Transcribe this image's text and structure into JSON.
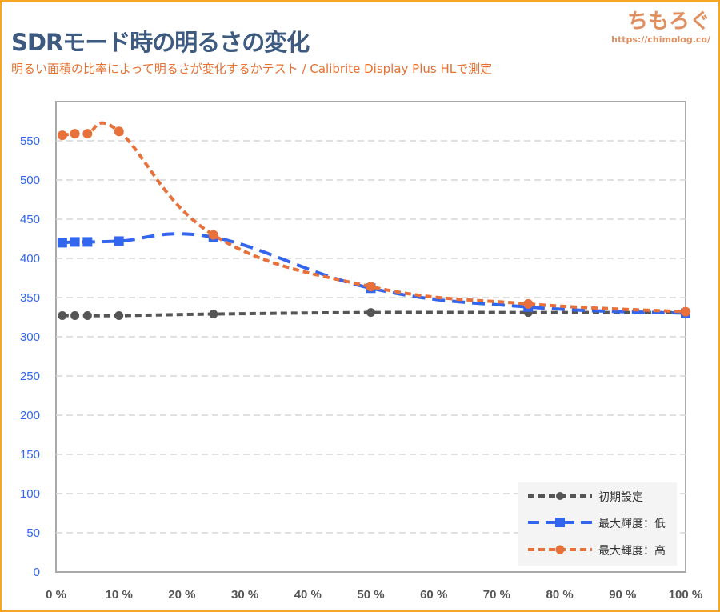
{
  "header": {
    "title": "SDRモード時の明るさの変化",
    "subtitle": "明るい面積の比率によって明るさが変化するかテスト / Calibrite Display Plus HLで測定"
  },
  "logo": {
    "name": "ちもろぐ",
    "url": "https://chimolog.co/"
  },
  "colors": {
    "default": "#555555",
    "low": "#3366ee",
    "high": "#e8703a"
  },
  "chart_data": {
    "type": "line",
    "title": "SDRモード時の明るさの変化",
    "xlabel": "",
    "ylabel": "",
    "x": [
      1,
      3,
      5,
      10,
      25,
      50,
      75,
      100
    ],
    "xlim": [
      0,
      100
    ],
    "ylim": [
      0,
      600
    ],
    "xticks": [
      "0 %",
      "10 %",
      "20 %",
      "30 %",
      "40 %",
      "50 %",
      "60 %",
      "70 %",
      "80 %",
      "90 %",
      "100 %"
    ],
    "yticks": [
      "0",
      "50",
      "100",
      "150",
      "200",
      "250",
      "300",
      "350",
      "400",
      "450",
      "500",
      "550"
    ],
    "grid": true,
    "legend_position": "bottom-right",
    "series": [
      {
        "name": "初期設定",
        "values": [
          327,
          327,
          327,
          327,
          329,
          331,
          331,
          331
        ]
      },
      {
        "name": "最大輝度：低",
        "values": [
          420,
          421,
          421,
          422,
          427,
          362,
          338,
          330
        ]
      },
      {
        "name": "最大輝度：高",
        "values": [
          557,
          559,
          559,
          562,
          430,
          364,
          342,
          332
        ]
      }
    ]
  }
}
